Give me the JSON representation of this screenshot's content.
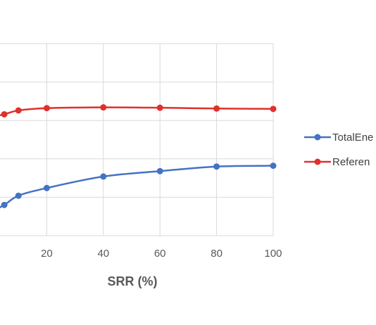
{
  "chart_data": {
    "type": "line",
    "x": [
      5,
      10,
      20,
      40,
      60,
      80,
      100
    ],
    "series": [
      {
        "name": "TotalEne",
        "color": "#4472c4",
        "values": [
          40,
          52,
          62,
          77,
          84,
          90,
          91
        ]
      },
      {
        "name": "Referen",
        "color": "#e0302c",
        "values": [
          158,
          163,
          166,
          167,
          166.5,
          165.5,
          165
        ]
      }
    ],
    "xticks": [
      20,
      40,
      60,
      80,
      100
    ],
    "xlabel": "SRR (%)",
    "ylabel": "",
    "xlim": [
      0,
      100
    ],
    "ylim": [
      0,
      250
    ],
    "grid": true,
    "legend": "right"
  }
}
